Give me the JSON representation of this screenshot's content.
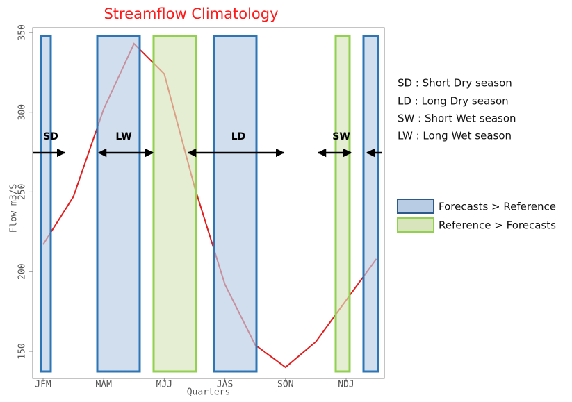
{
  "chart_data": {
    "type": "line",
    "title": "Streamflow Climatology",
    "x_label": "Quarters",
    "y_label": "Flow m3/S",
    "categories": [
      "JFM",
      null,
      "MAM",
      null,
      "MJJ",
      null,
      "JAS",
      null,
      "SON",
      null,
      "NDJ",
      null
    ],
    "values": [
      217,
      247,
      302,
      343,
      324,
      253,
      192,
      154,
      140,
      156,
      182,
      208
    ],
    "color": "#e02020",
    "ylim": [
      133,
      353
    ],
    "yticks": [
      150,
      200,
      250,
      300,
      350
    ],
    "season_labels": [
      "SD",
      "LW",
      "LD",
      "SW"
    ],
    "definitions": [
      "SD : Short Dry season",
      "LD : Long Dry season",
      "SW : Short Wet season",
      "LW : Long Wet season"
    ],
    "legend": [
      "Forecasts > Reference",
      "Reference > Forecasts"
    ]
  }
}
